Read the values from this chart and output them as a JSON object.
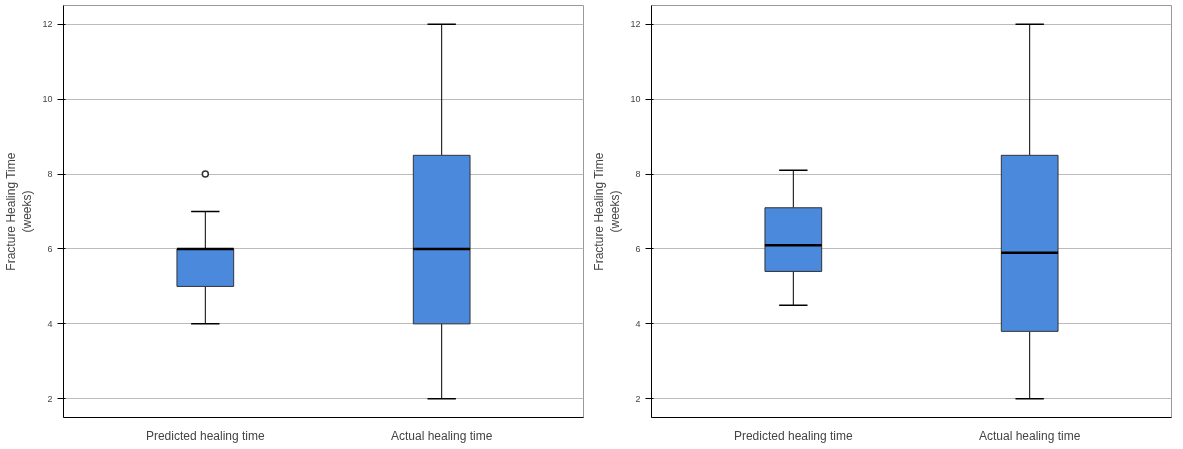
{
  "chart_data": [
    {
      "type": "box",
      "ylabel": "Fracture Healing Time\n(weeks)",
      "categories": [
        "Predicted healing time",
        "Actual healing time"
      ],
      "ylim": [
        1.5,
        12.5
      ],
      "yticks": [
        2,
        4,
        6,
        8,
        10,
        12
      ],
      "grid": "y",
      "series": [
        {
          "color": "#4a89dc",
          "boxes": [
            {
              "low": 4,
              "q1": 5,
              "median": 6,
              "q3": 6,
              "high": 7,
              "outliers": [
                8
              ]
            },
            {
              "low": 2,
              "q1": 4,
              "median": 6,
              "q3": 8.5,
              "high": 12
            }
          ]
        }
      ]
    },
    {
      "type": "box",
      "ylabel": "Fracture Healing Time\n(weeks)",
      "categories": [
        "Predicted healing time",
        "Actual healing time"
      ],
      "ylim": [
        1.5,
        12.5
      ],
      "yticks": [
        2,
        4,
        6,
        8,
        10,
        12
      ],
      "grid": "y",
      "series": [
        {
          "color": "#4a89dc",
          "boxes": [
            {
              "low": 4.5,
              "q1": 5.4,
              "median": 6.1,
              "q3": 7.1,
              "high": 8.1
            },
            {
              "low": 2,
              "q1": 3.8,
              "median": 5.9,
              "q3": 8.5,
              "high": 12
            }
          ]
        }
      ]
    }
  ]
}
